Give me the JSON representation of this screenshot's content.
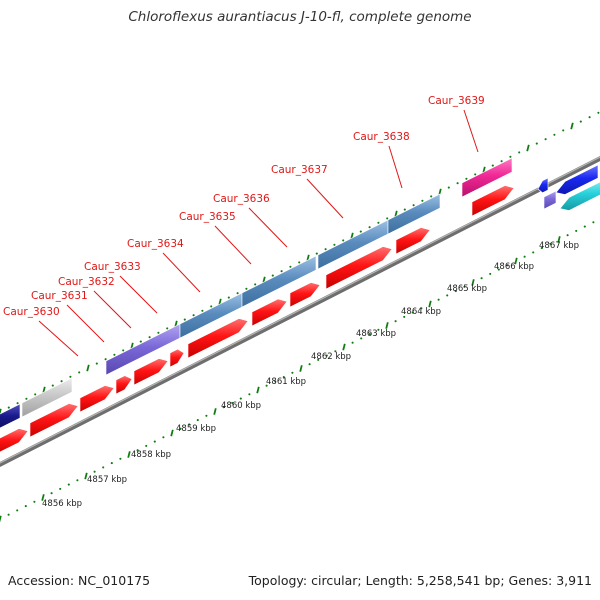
{
  "title": "Chloroflexus aurantiacus J-10-fl, complete genome",
  "footer": {
    "accession": "Accession: NC_010175",
    "summary": "Topology: circular; Length: 5,258,541 bp; Genes: 3,911"
  },
  "colors": {
    "cds_red": "#ff1414",
    "steelblue": "#5a8cbe",
    "purple": "#7b68d8",
    "navy": "#1a1a8c",
    "gray_feature": "#c8c8c8",
    "magenta": "#f02896",
    "blue": "#1a28f0",
    "cyan": "#28d2dc",
    "label_red": "#e01818",
    "tick_green": "#0f7d0f",
    "backbone": "#8a8a8a"
  },
  "kbp_labels": [
    "4856 kbp",
    "4857 kbp",
    "4858 kbp",
    "4859 kbp",
    "4860 kbp",
    "4861 kbp",
    "4862 kbp",
    "4863 kbp",
    "4864 kbp",
    "4865 kbp",
    "4866 kbp",
    "4867 kbp"
  ],
  "gene_labels": [
    "Caur_3630",
    "Caur_3631",
    "Caur_3632",
    "Caur_3633",
    "Caur_3634",
    "Caur_3635",
    "Caur_3636",
    "Caur_3637",
    "Caur_3638",
    "Caur_3639"
  ]
}
